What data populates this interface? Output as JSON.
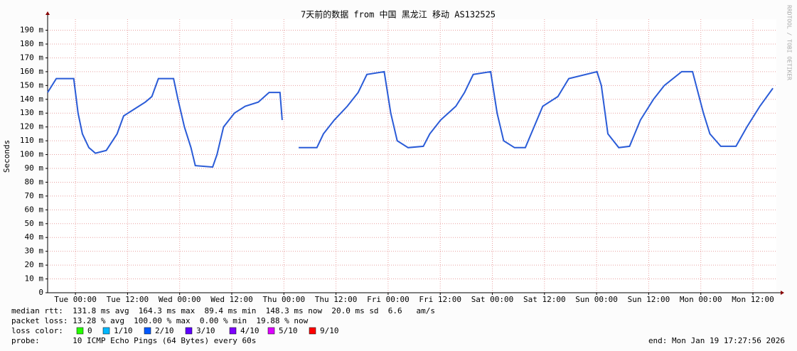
{
  "chart_data": {
    "type": "line",
    "title": "7天前的数据 from 中国 黑龙江 移动 AS132525",
    "ylabel": "Seconds",
    "x": [
      0,
      2,
      6,
      7,
      8,
      9.5,
      11,
      13.5,
      16,
      17.5,
      20,
      22.5,
      24,
      25.5,
      29,
      30,
      31.5,
      33,
      34,
      38,
      39,
      40.5,
      43,
      45.5,
      48.5,
      51,
      53.5,
      54,
      56,
      57.8,
      62,
      63.5,
      66,
      69,
      71.5,
      73.5,
      77.5,
      79,
      80.5,
      83,
      86.5,
      88,
      90.5,
      94,
      96,
      98,
      102,
      103.5,
      105,
      107.5,
      110,
      112,
      114,
      117.5,
      120,
      126.5,
      127.5,
      129,
      131.5,
      134,
      136.5,
      139.5,
      142,
      146,
      148.5,
      151,
      152.5,
      155,
      158.5,
      161,
      164,
      167
    ],
    "series": [
      {
        "color": "#2a5bd7",
        "values": [
          0.145,
          0.155,
          0.155,
          0.13,
          0.115,
          0.105,
          0.101,
          0.103,
          0.115,
          0.128,
          0.133,
          0.138,
          0.142,
          0.155,
          0.155,
          0.14,
          0.12,
          0.105,
          0.092,
          0.091,
          0.1,
          0.12,
          0.13,
          0.135,
          0.138,
          0.145,
          0.145,
          0.125,
          null,
          0.105,
          0.105,
          0.115,
          0.125,
          0.135,
          0.145,
          0.158,
          0.16,
          0.13,
          0.11,
          0.105,
          0.106,
          0.115,
          0.125,
          0.135,
          0.145,
          0.158,
          0.16,
          0.13,
          0.11,
          0.105,
          0.105,
          0.12,
          0.135,
          0.142,
          0.155,
          0.16,
          0.15,
          0.115,
          0.105,
          0.106,
          0.125,
          0.14,
          0.15,
          0.16,
          0.16,
          0.13,
          0.115,
          0.106,
          0.106,
          0.12,
          0.135,
          0.148
        ]
      }
    ],
    "xlim": [
      0,
      167.8
    ],
    "xticks": [
      {
        "value": 6.4,
        "label": "Tue 00:00"
      },
      {
        "value": 18.4,
        "label": "Tue 12:00"
      },
      {
        "value": 30.4,
        "label": "Wed 00:00"
      },
      {
        "value": 42.4,
        "label": "Wed 12:00"
      },
      {
        "value": 54.4,
        "label": "Thu 00:00"
      },
      {
        "value": 66.4,
        "label": "Thu 12:00"
      },
      {
        "value": 78.4,
        "label": "Fri 00:00"
      },
      {
        "value": 90.4,
        "label": "Fri 12:00"
      },
      {
        "value": 102.4,
        "label": "Sat 00:00"
      },
      {
        "value": 114.4,
        "label": "Sat 12:00"
      },
      {
        "value": 126.4,
        "label": "Sun 00:00"
      },
      {
        "value": 138.4,
        "label": "Sun 12:00"
      },
      {
        "value": 150.4,
        "label": "Mon 00:00"
      },
      {
        "value": 162.4,
        "label": "Mon 12:00"
      }
    ],
    "ylim": [
      0,
      0.198
    ],
    "yticks": [
      0,
      {
        "value": 0.01,
        "label": "10 m"
      },
      {
        "value": 0.02,
        "label": "20 m"
      },
      {
        "value": 0.03,
        "label": "30 m"
      },
      {
        "value": 0.04,
        "label": "40 m"
      },
      {
        "value": 0.05,
        "label": "50 m"
      },
      {
        "value": 0.06,
        "label": "60 m"
      },
      {
        "value": 0.07,
        "label": "70 m"
      },
      {
        "value": 0.08,
        "label": "80 m"
      },
      {
        "value": 0.09,
        "label": "90 m"
      },
      {
        "value": 0.1,
        "label": "100 m"
      },
      {
        "value": 0.11,
        "label": "110 m"
      },
      {
        "value": 0.12,
        "label": "120 m"
      },
      {
        "value": 0.13,
        "label": "130 m"
      },
      {
        "value": 0.14,
        "label": "140 m"
      },
      {
        "value": 0.15,
        "label": "150 m"
      },
      {
        "value": 0.16,
        "label": "160 m"
      },
      {
        "value": 0.17,
        "label": "170 m"
      },
      {
        "value": 0.18,
        "label": "180 m"
      },
      {
        "value": 0.19,
        "label": "190 m"
      }
    ],
    "grid": true
  },
  "stats": {
    "median_rtt": "median rtt:  131.8 ms avg  164.3 ms max  89.4 ms min  148.3 ms now  20.0 ms sd  6.6   am/s",
    "packet_loss": "packet loss: 13.28 % avg  100.00 % max  0.00 % min  19.88 % now",
    "loss_color_label": "loss color:",
    "loss_colors": [
      {
        "label": "0",
        "color": "#26ff00"
      },
      {
        "label": "1/10",
        "color": "#00b8ff"
      },
      {
        "label": "2/10",
        "color": "#0059ff"
      },
      {
        "label": "3/10",
        "color": "#5e00ff"
      },
      {
        "label": "4/10",
        "color": "#7e00ff"
      },
      {
        "label": "5/10",
        "color": "#dd00ff"
      },
      {
        "label": "9/10",
        "color": "#ff0000"
      }
    ],
    "probe": "probe:       10 ICMP Echo Pings (64 Bytes) every 60s",
    "end": "end: Mon Jan 19 17:27:56 2026"
  },
  "watermark": "RRDTOOL / TOBI OETIKER"
}
